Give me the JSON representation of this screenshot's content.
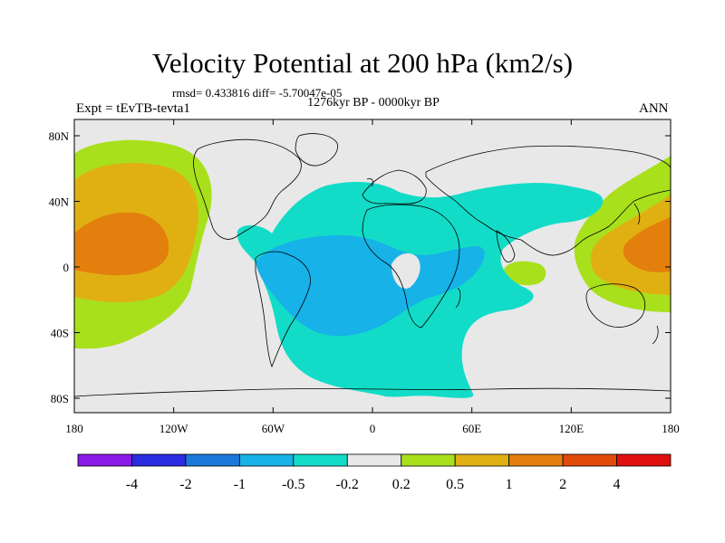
{
  "title": "Velocity Potential at 200 hPa (km2/s)",
  "stats": "rmsd= 0.433816 diff= -5.70047e-05",
  "period": "1276kyr BP - 0000kyr BP",
  "experiment": "Expt = tEvTB-tevta1",
  "season": "ANN",
  "lat_ticks": [
    "80N",
    "40N",
    "0",
    "40S",
    "80S"
  ],
  "lon_ticks": [
    "180",
    "120W",
    "60W",
    "0",
    "60E",
    "120E",
    "180"
  ],
  "colorbar": {
    "labels": [
      "-4",
      "-2",
      "-1",
      "-0.5",
      "-0.2",
      "0.2",
      "0.5",
      "1",
      "2",
      "4"
    ],
    "colors": [
      "#8a19e8",
      "#2b2be0",
      "#1a78d8",
      "#16b2e8",
      "#12dcc7",
      "#e8e8e8",
      "#a8e01c",
      "#e0b012",
      "#e37f0c",
      "#e04a0a",
      "#e01010"
    ]
  },
  "fills": {
    "land_bg": "#e8e8e8",
    "pos_weak": "#a8e01c",
    "pos_mid": "#e0b012",
    "pos_strong": "#e37f0c",
    "neg_weak": "#12dcc7",
    "neg_mid": "#16b2e8"
  }
}
